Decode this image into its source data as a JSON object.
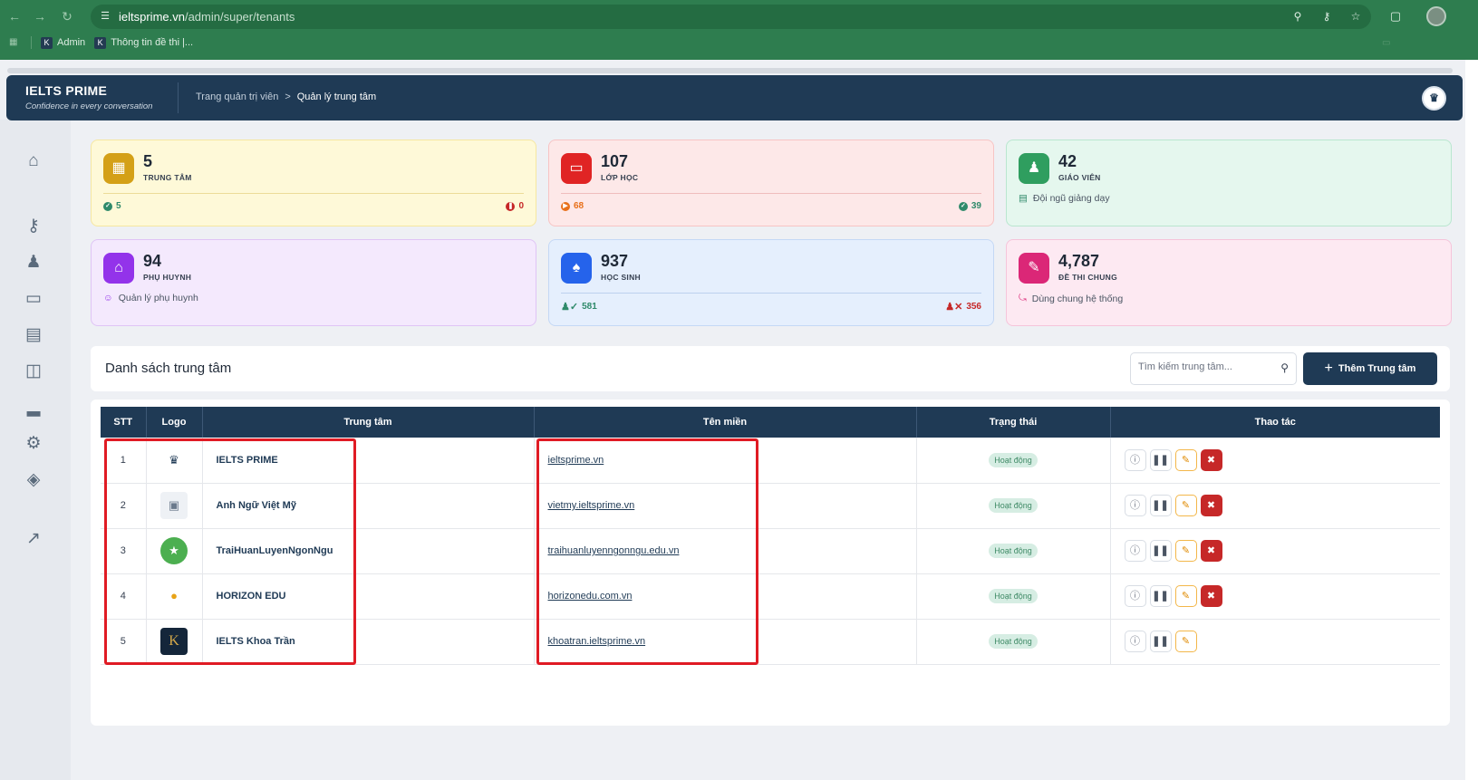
{
  "browser": {
    "url_host": "ieltsprime.vn",
    "url_path": "/admin/super/tenants",
    "bookmarks": [
      {
        "label": "Admin"
      },
      {
        "label": "Thông tin đề thi |..."
      }
    ]
  },
  "header": {
    "brand": "IELTS PRIME",
    "tagline": "Confidence in every conversation",
    "breadcrumb_root": "Trang quản trị viên",
    "breadcrumb_sep": ">",
    "breadcrumb_current": "Quản lý trung tâm"
  },
  "sidebar": {
    "icons": [
      "home-icon",
      "key-icon",
      "users-icon",
      "presentation-icon",
      "briefcase-icon",
      "storage-icon",
      "bar-chart-icon",
      "gear-icon",
      "layers-icon",
      "expand-icon"
    ]
  },
  "stats": [
    {
      "value": "5",
      "label": "TRUNG TÂM",
      "left": "5",
      "right": "0",
      "bg": "#fef9d8",
      "border": "#f6e7a0",
      "icon_bg": "#d4a017",
      "icon": "building-icon"
    },
    {
      "value": "107",
      "label": "LỚP HỌC",
      "left": "68",
      "right": "39",
      "bg": "#fde8e8",
      "border": "#f7c4c4",
      "icon_bg": "#e02424",
      "icon": "class-icon"
    },
    {
      "value": "42",
      "label": "GIÁO VIÊN",
      "sub": "Đội ngũ giảng dạy",
      "bg": "#e5f7ee",
      "border": "#b9e6cf",
      "icon_bg": "#2f9e5f",
      "icon": "teacher-icon"
    },
    {
      "value": "94",
      "label": "PHỤ HUYNH",
      "sub": "Quản lý phụ huynh",
      "bg": "#f4e9fd",
      "border": "#dfc4f5",
      "icon_bg": "#9333ea",
      "icon": "family-icon"
    },
    {
      "value": "937",
      "label": "HỌC SINH",
      "left": "581",
      "right": "356",
      "bg": "#e5effd",
      "border": "#c4d8f5",
      "icon_bg": "#2563eb",
      "icon": "student-icon"
    },
    {
      "value": "4,787",
      "label": "ĐỀ THI CHUNG",
      "sub": "Dùng chung hệ thống",
      "bg": "#fde9f2",
      "border": "#f5c4da",
      "icon_bg": "#db2777",
      "icon": "exam-icon"
    }
  ],
  "list": {
    "title": "Danh sách trung tâm",
    "search_placeholder": "Tìm kiếm trung tâm...",
    "add_label": "Thêm Trung tâm",
    "columns": [
      "STT",
      "Logo",
      "Trung tâm",
      "Tên miền",
      "Trạng thái",
      "Thao tác"
    ],
    "rows": [
      {
        "stt": "1",
        "name": "IELTS PRIME",
        "domain": "ieltsprime.vn",
        "status": "Hoạt động",
        "logo": "ielts-prime-logo",
        "can_delete": true
      },
      {
        "stt": "2",
        "name": "Anh Ngữ Việt Mỹ",
        "domain": "vietmy.ieltsprime.vn",
        "status": "Hoạt động",
        "logo": "image-placeholder-icon",
        "can_delete": true
      },
      {
        "stt": "3",
        "name": "TraiHuanLuyenNgonNgu",
        "domain": "traihuanluyenngonngu.edu.vn",
        "status": "Hoạt động",
        "logo": "green-emblem-logo",
        "can_delete": true
      },
      {
        "stt": "4",
        "name": "HORIZON EDU",
        "domain": "horizonedu.com.vn",
        "status": "Hoạt động",
        "logo": "horizon-logo",
        "can_delete": true
      },
      {
        "stt": "5",
        "name": "IELTS Khoa Trần",
        "domain": "khoatran.ieltsprime.vn",
        "status": "Hoạt động",
        "logo": "k-logo",
        "can_delete": false
      }
    ]
  },
  "colors": {
    "navy": "#1f3a55",
    "highlight": "#e01b24",
    "browser_green": "#2e7d4f"
  }
}
